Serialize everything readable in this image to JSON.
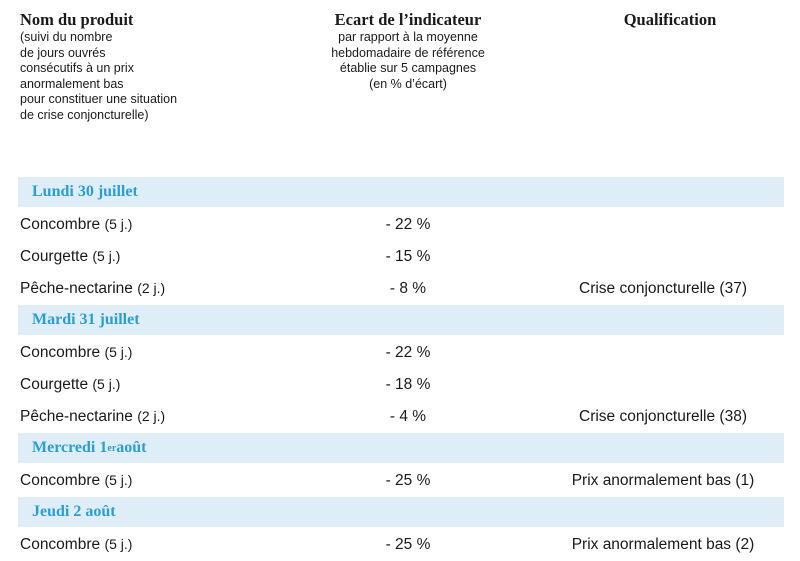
{
  "header": {
    "col1_title": "Nom du produit",
    "col1_sub": "(suivi du nombre\nde jours ouvrés\nconsécutifs à un prix\nanormalement bas\npour constituer une situation\nde crise conjoncturelle)",
    "col2_title": "Ecart de l’indicateur",
    "col2_sub": "par rapport à la moyenne\nhebdomadaire de référence\nétablie sur 5 campagnes\n(en % d’écart)",
    "col3_title": "Qualification"
  },
  "groups": [
    {
      "date": "Lundi 30 juillet",
      "rows": [
        {
          "product": "Concombre",
          "days": "(5 j.)",
          "ecart": "- 22 %",
          "qualification": ""
        },
        {
          "product": "Courgette",
          "days": "(5 j.)",
          "ecart": "- 15 %",
          "qualification": ""
        },
        {
          "product": "Pêche-nectarine",
          "days": "(2 j.)",
          "ecart": "- 8 %",
          "qualification": "Crise conjoncturelle (37)"
        }
      ]
    },
    {
      "date": "Mardi 31 juillet",
      "rows": [
        {
          "product": "Concombre",
          "days": "(5 j.)",
          "ecart": "- 22 %",
          "qualification": ""
        },
        {
          "product": "Courgette",
          "days": "(5 j.)",
          "ecart": "- 18 %",
          "qualification": ""
        },
        {
          "product": "Pêche-nectarine",
          "days": "(2 j.)",
          "ecart": "- 4 %",
          "qualification": "Crise conjoncturelle (38)"
        }
      ]
    },
    {
      "date": "Mercredi 1",
      "date_sup": "er",
      "date_tail": " août",
      "rows": [
        {
          "product": "Concombre",
          "days": "(5 j.)",
          "ecart": "- 25 %",
          "qualification": "Prix anormalement bas (1)"
        }
      ]
    },
    {
      "date": "Jeudi 2 août",
      "rows": [
        {
          "product": "Concombre",
          "days": "(5 j.)",
          "ecart": "- 25 %",
          "qualification": "Prix anormalement bas (2)"
        }
      ]
    }
  ]
}
